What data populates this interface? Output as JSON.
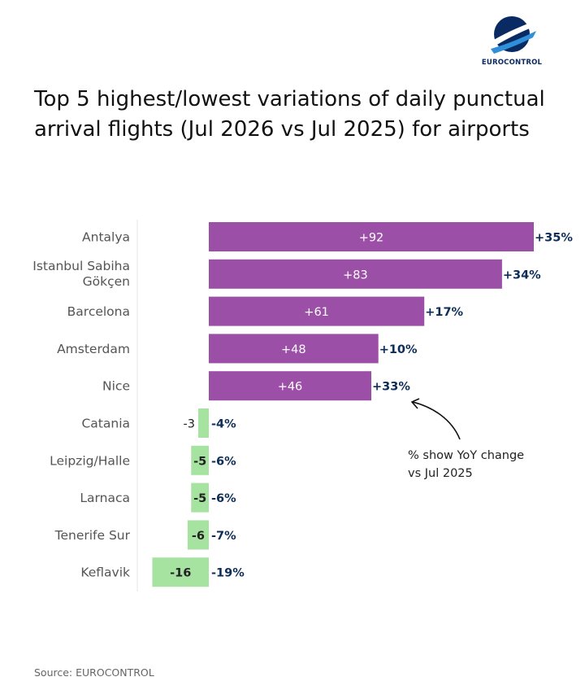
{
  "brand": {
    "name": "EUROCONTROL"
  },
  "title": "Top 5 highest/lowest variations of daily punctual arrival flights (Jul 2026 vs Jul 2025) for airports",
  "annotation": {
    "line1": "% show YoY change",
    "line2": "vs Jul 2025"
  },
  "source": "Source: EUROCONTROL",
  "colors": {
    "positive": "#9c4fa6",
    "negative": "#a6e2a0",
    "pct_label": "#0c2d57",
    "axis": "#e6e6e6"
  },
  "chart_data": {
    "type": "bar",
    "orientation": "horizontal",
    "title": "Top 5 highest/lowest variations of daily punctual arrival flights (Jul 2026 vs Jul 2025) for airports",
    "xlabel": "",
    "ylabel": "",
    "grid": false,
    "categories": [
      [
        "Antalya"
      ],
      [
        "Istanbul Sabiha",
        "Gökçen"
      ],
      [
        "Barcelona"
      ],
      [
        "Amsterdam"
      ],
      [
        "Nice"
      ],
      [
        "Catania"
      ],
      [
        "Leipzig/Halle"
      ],
      [
        "Larnaca"
      ],
      [
        "Tenerife Sur"
      ],
      [
        "Keflavik"
      ]
    ],
    "values": [
      92,
      83,
      61,
      48,
      46,
      -3,
      -5,
      -5,
      -6,
      -16
    ],
    "value_labels": [
      "+92",
      "+83",
      "+61",
      "+48",
      "+46",
      "-3",
      "-5",
      "-5",
      "-6",
      "-16"
    ],
    "pct_labels": [
      "+35%",
      "+34%",
      "+17%",
      "+10%",
      "+33%",
      "-4%",
      "-6%",
      "-6%",
      "-7%",
      "-19%"
    ]
  }
}
